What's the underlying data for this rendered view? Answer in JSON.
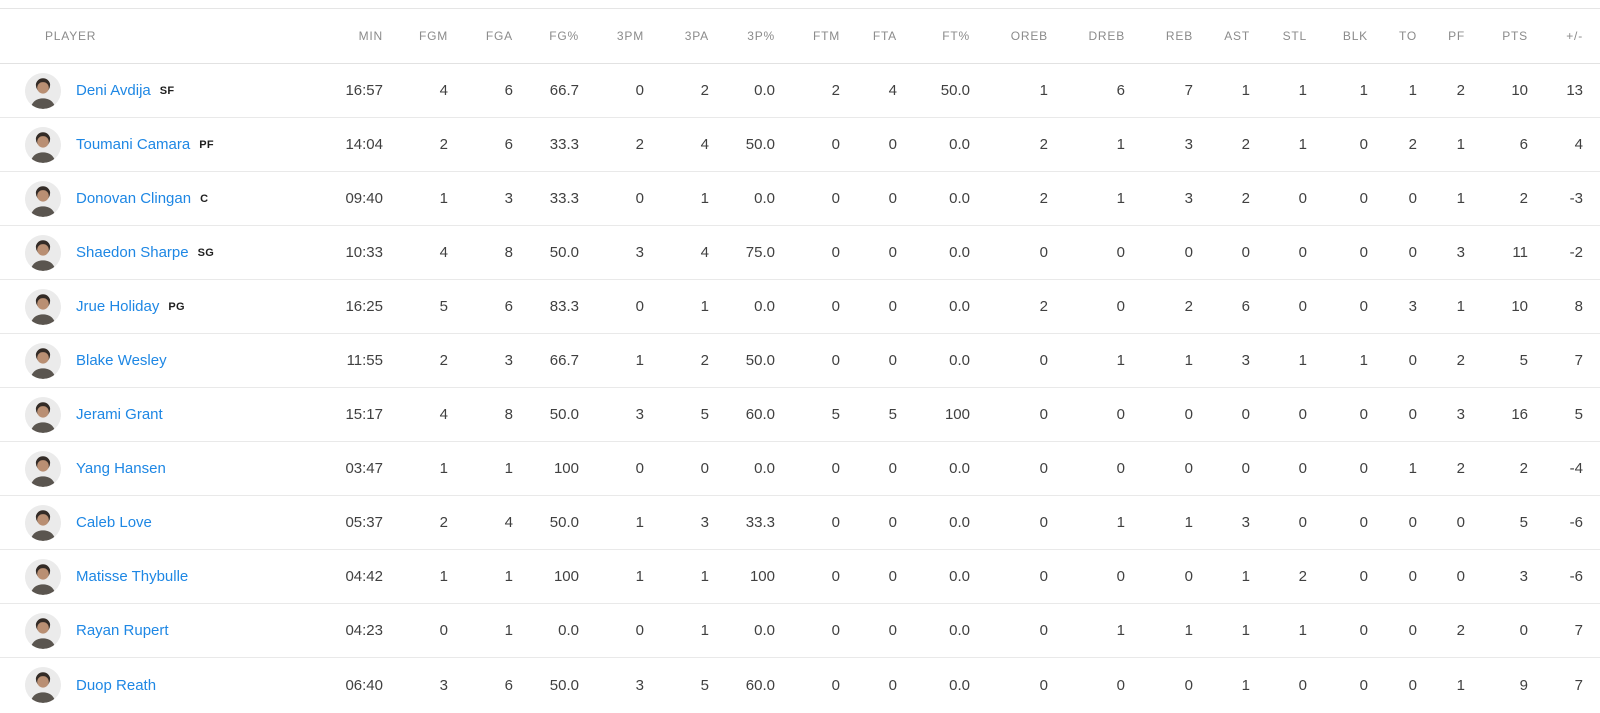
{
  "colors": {
    "player_link_blue": "#1e87e4",
    "header_gray": "#8b8b8b",
    "stat_text": "#404040",
    "row_divider": "#e9e9e9",
    "avatar_bg": "#ebebeb"
  },
  "table": {
    "columns": [
      "PLAYER",
      "MIN",
      "FGM",
      "FGA",
      "FG%",
      "3PM",
      "3PA",
      "3P%",
      "FTM",
      "FTA",
      "FT%",
      "OREB",
      "DREB",
      "REB",
      "AST",
      "STL",
      "BLK",
      "TO",
      "PF",
      "PTS",
      "+/-"
    ],
    "rows": [
      {
        "name": "Deni Avdija",
        "position": "SF",
        "stats": [
          "16:57",
          "4",
          "6",
          "66.7",
          "0",
          "2",
          "0.0",
          "2",
          "4",
          "50.0",
          "1",
          "6",
          "7",
          "1",
          "1",
          "1",
          "1",
          "2",
          "10",
          "13"
        ]
      },
      {
        "name": "Toumani Camara",
        "position": "PF",
        "stats": [
          "14:04",
          "2",
          "6",
          "33.3",
          "2",
          "4",
          "50.0",
          "0",
          "0",
          "0.0",
          "2",
          "1",
          "3",
          "2",
          "1",
          "0",
          "2",
          "1",
          "6",
          "4"
        ]
      },
      {
        "name": "Donovan Clingan",
        "position": "C",
        "stats": [
          "09:40",
          "1",
          "3",
          "33.3",
          "0",
          "1",
          "0.0",
          "0",
          "0",
          "0.0",
          "2",
          "1",
          "3",
          "2",
          "0",
          "0",
          "0",
          "1",
          "2",
          "-3"
        ]
      },
      {
        "name": "Shaedon Sharpe",
        "position": "SG",
        "stats": [
          "10:33",
          "4",
          "8",
          "50.0",
          "3",
          "4",
          "75.0",
          "0",
          "0",
          "0.0",
          "0",
          "0",
          "0",
          "0",
          "0",
          "0",
          "0",
          "3",
          "11",
          "-2"
        ]
      },
      {
        "name": "Jrue Holiday",
        "position": "PG",
        "stats": [
          "16:25",
          "5",
          "6",
          "83.3",
          "0",
          "1",
          "0.0",
          "0",
          "0",
          "0.0",
          "2",
          "0",
          "2",
          "6",
          "0",
          "0",
          "3",
          "1",
          "10",
          "8"
        ]
      },
      {
        "name": "Blake Wesley",
        "position": "",
        "stats": [
          "11:55",
          "2",
          "3",
          "66.7",
          "1",
          "2",
          "50.0",
          "0",
          "0",
          "0.0",
          "0",
          "1",
          "1",
          "3",
          "1",
          "1",
          "0",
          "2",
          "5",
          "7"
        ]
      },
      {
        "name": "Jerami Grant",
        "position": "",
        "stats": [
          "15:17",
          "4",
          "8",
          "50.0",
          "3",
          "5",
          "60.0",
          "5",
          "5",
          "100",
          "0",
          "0",
          "0",
          "0",
          "0",
          "0",
          "0",
          "3",
          "16",
          "5"
        ]
      },
      {
        "name": "Yang Hansen",
        "position": "",
        "stats": [
          "03:47",
          "1",
          "1",
          "100",
          "0",
          "0",
          "0.0",
          "0",
          "0",
          "0.0",
          "0",
          "0",
          "0",
          "0",
          "0",
          "0",
          "1",
          "2",
          "2",
          "-4"
        ]
      },
      {
        "name": "Caleb Love",
        "position": "",
        "stats": [
          "05:37",
          "2",
          "4",
          "50.0",
          "1",
          "3",
          "33.3",
          "0",
          "0",
          "0.0",
          "0",
          "1",
          "1",
          "3",
          "0",
          "0",
          "0",
          "0",
          "5",
          "-6"
        ]
      },
      {
        "name": "Matisse Thybulle",
        "position": "",
        "stats": [
          "04:42",
          "1",
          "1",
          "100",
          "1",
          "1",
          "100",
          "0",
          "0",
          "0.0",
          "0",
          "0",
          "0",
          "1",
          "2",
          "0",
          "0",
          "0",
          "3",
          "-6"
        ]
      },
      {
        "name": "Rayan Rupert",
        "position": "",
        "stats": [
          "04:23",
          "0",
          "1",
          "0.0",
          "0",
          "1",
          "0.0",
          "0",
          "0",
          "0.0",
          "0",
          "1",
          "1",
          "1",
          "1",
          "0",
          "0",
          "2",
          "0",
          "7"
        ]
      },
      {
        "name": "Duop Reath",
        "position": "",
        "stats": [
          "06:40",
          "3",
          "6",
          "50.0",
          "3",
          "5",
          "60.0",
          "0",
          "0",
          "0.0",
          "0",
          "0",
          "0",
          "1",
          "0",
          "0",
          "0",
          "1",
          "9",
          "7"
        ]
      }
    ]
  }
}
